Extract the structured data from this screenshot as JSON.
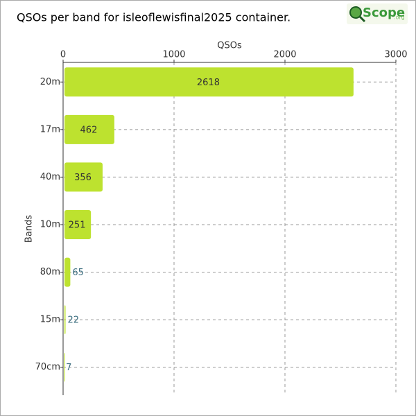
{
  "chart_data": {
    "type": "barh",
    "title": "QSOs per band for isleoflewisfinal2025 container.",
    "logo": {
      "text": "Scope",
      "suffix": ".org"
    },
    "x_label": "QSOs",
    "y_label": "Bands",
    "categories": [
      "20m",
      "17m",
      "40m",
      "10m",
      "80m",
      "15m",
      "70cm"
    ],
    "values": [
      2618,
      462,
      356,
      251,
      65,
      22,
      7
    ],
    "color": "#bde22f",
    "xlim": [
      0,
      3000
    ],
    "xticks": [
      0,
      1000,
      2000,
      3000
    ],
    "grid": true
  }
}
